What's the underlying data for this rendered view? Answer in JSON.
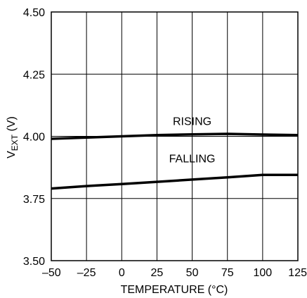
{
  "chart_data": {
    "type": "line",
    "title": "",
    "xlabel": "TEMPERATURE (°C)",
    "ylabel": {
      "main": "V",
      "subscript": "EXT",
      "unit": " (V)"
    },
    "xlim": [
      -50,
      125
    ],
    "ylim": [
      3.5,
      4.5
    ],
    "xticks": [
      -50,
      -25,
      0,
      25,
      50,
      75,
      100,
      125
    ],
    "xtick_labels": [
      "–50",
      "–25",
      "0",
      "25",
      "50",
      "75",
      "100",
      "125"
    ],
    "yticks": [
      3.5,
      3.75,
      4.0,
      4.25,
      4.5
    ],
    "ytick_labels": [
      "3.50",
      "3.75",
      "4.00",
      "4.25",
      "4.50"
    ],
    "grid": true,
    "series": [
      {
        "name": "RISING",
        "x": [
          -50,
          -25,
          0,
          25,
          50,
          75,
          100,
          125
        ],
        "y": [
          3.99,
          3.995,
          4.0,
          4.005,
          4.008,
          4.01,
          4.007,
          4.005
        ]
      },
      {
        "name": "FALLING",
        "x": [
          -50,
          -25,
          0,
          25,
          50,
          75,
          100,
          125
        ],
        "y": [
          3.79,
          3.8,
          3.808,
          3.817,
          3.826,
          3.835,
          3.845,
          3.845
        ]
      }
    ],
    "series_label_anchors": [
      {
        "x": 50,
        "y": 4.045
      },
      {
        "x": 50,
        "y": 3.895
      }
    ]
  }
}
